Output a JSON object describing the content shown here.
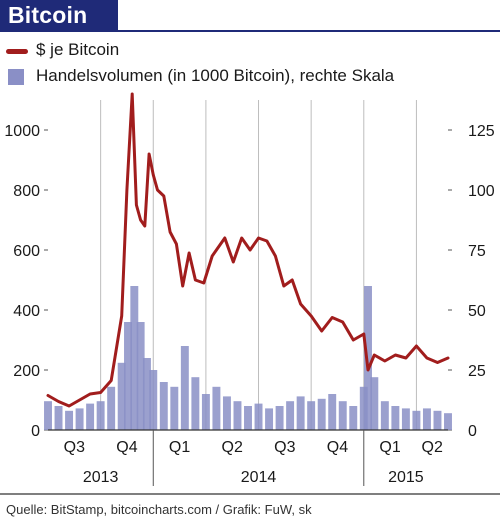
{
  "header": {
    "title": "Bitcoin"
  },
  "source": "Quelle: BitStamp, bitcoincharts.com / Grafik: FuW, sk",
  "colors": {
    "title_bg": "#1f2a78",
    "price_line": "#a11d1d",
    "volume_bars": "#8a8fc6",
    "grid": "#bdbdbd"
  },
  "chart_data": {
    "type": "line",
    "title": "Bitcoin",
    "legend": [
      {
        "name": "$ je Bitcoin",
        "kind": "line",
        "color": "#a11d1d"
      },
      {
        "name": "Handelsvolumen (in 1000 Bitcoin), rechte Skala",
        "kind": "bar",
        "color": "#8a8fc6"
      }
    ],
    "x_quarter_labels": [
      "Q3",
      "Q4",
      "Q1",
      "Q2",
      "Q3",
      "Q4",
      "Q1",
      "Q2"
    ],
    "x_year_labels": [
      "2013",
      "2014",
      "2015"
    ],
    "y_left": {
      "min": 0,
      "max": 1100,
      "ticks": [
        0,
        200,
        400,
        600,
        800,
        1000
      ]
    },
    "y_right": {
      "min": 0,
      "max": 137.5,
      "ticks": [
        0,
        25,
        50,
        75,
        100,
        125
      ]
    },
    "grid": "vertical",
    "series": [
      {
        "name": "$ je Bitcoin",
        "axis": "left",
        "time": [
          2013.5,
          2013.55,
          2013.6,
          2013.65,
          2013.7,
          2013.75,
          2013.8,
          2013.85,
          2013.875,
          2013.9,
          2013.92,
          2013.94,
          2013.96,
          2013.98,
          2014.0,
          2014.02,
          2014.05,
          2014.08,
          2014.11,
          2014.14,
          2014.17,
          2014.2,
          2014.24,
          2014.28,
          2014.3,
          2014.34,
          2014.38,
          2014.42,
          2014.46,
          2014.5,
          2014.54,
          2014.58,
          2014.62,
          2014.66,
          2014.7,
          2014.75,
          2014.8,
          2014.85,
          2014.9,
          2014.95,
          2015.0,
          2015.02,
          2015.05,
          2015.1,
          2015.15,
          2015.2,
          2015.25,
          2015.3,
          2015.35,
          2015.4
        ],
        "values": [
          115,
          95,
          80,
          100,
          120,
          125,
          165,
          380,
          800,
          1120,
          750,
          700,
          680,
          920,
          850,
          800,
          780,
          660,
          620,
          480,
          590,
          500,
          490,
          580,
          600,
          640,
          560,
          640,
          600,
          640,
          630,
          580,
          480,
          500,
          420,
          380,
          330,
          375,
          360,
          300,
          320,
          200,
          250,
          230,
          250,
          240,
          280,
          240,
          225,
          240
        ]
      },
      {
        "name": "Handelsvolumen (in 1000 Bitcoin), rechte Skala",
        "axis": "right",
        "time": [
          2013.5,
          2013.55,
          2013.6,
          2013.65,
          2013.7,
          2013.75,
          2013.8,
          2013.85,
          2013.88,
          2013.91,
          2013.94,
          2013.97,
          2014.0,
          2014.05,
          2014.1,
          2014.15,
          2014.2,
          2014.25,
          2014.3,
          2014.35,
          2014.4,
          2014.45,
          2014.5,
          2014.55,
          2014.6,
          2014.65,
          2014.7,
          2014.75,
          2014.8,
          2014.85,
          2014.9,
          2014.95,
          2015.0,
          2015.02,
          2015.05,
          2015.1,
          2015.15,
          2015.2,
          2015.25,
          2015.3,
          2015.35,
          2015.4
        ],
        "values": [
          12,
          10,
          8,
          9,
          11,
          12,
          18,
          28,
          45,
          60,
          45,
          30,
          25,
          20,
          18,
          35,
          22,
          15,
          18,
          14,
          12,
          10,
          11,
          9,
          10,
          12,
          14,
          12,
          13,
          15,
          12,
          10,
          18,
          60,
          22,
          12,
          10,
          9,
          8,
          9,
          8,
          7
        ]
      }
    ]
  }
}
